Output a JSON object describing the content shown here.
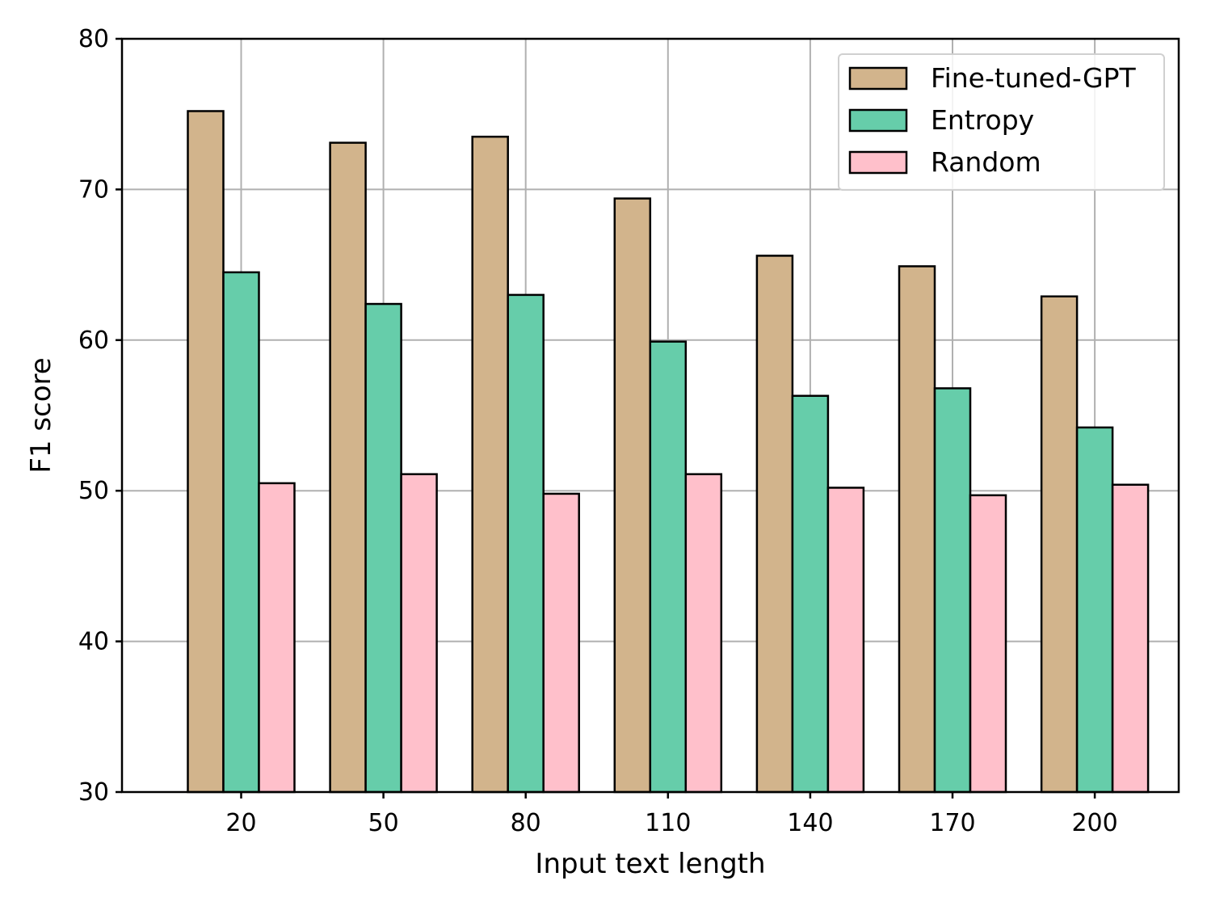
{
  "chart_data": {
    "type": "bar",
    "categories": [
      "20",
      "50",
      "80",
      "110",
      "140",
      "170",
      "200"
    ],
    "series": [
      {
        "name": "Fine-tuned-GPT",
        "color": "#D2B48C",
        "values": [
          75.2,
          73.1,
          73.5,
          69.4,
          65.6,
          64.9,
          62.9
        ]
      },
      {
        "name": "Entropy",
        "color": "#66CDAA",
        "values": [
          64.5,
          62.4,
          63.0,
          59.9,
          56.3,
          56.8,
          54.2
        ]
      },
      {
        "name": "Random",
        "color": "#FFC0CB",
        "values": [
          50.5,
          51.1,
          49.8,
          51.1,
          50.2,
          49.7,
          50.4
        ]
      }
    ],
    "xlabel": "Input text length",
    "ylabel": "F1 score",
    "ylim": [
      30,
      80
    ],
    "yticks": [
      30,
      40,
      50,
      60,
      70,
      80
    ],
    "grid": true,
    "legend_position": "top-right"
  }
}
